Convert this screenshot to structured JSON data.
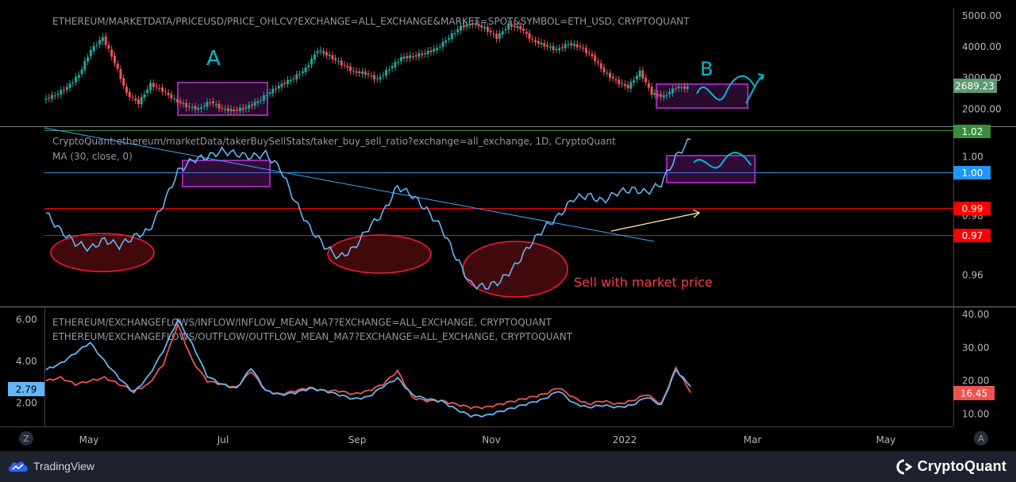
{
  "chart_data": [
    {
      "type": "line",
      "title": "ETHEREUM/MARKETDATA/PRICEUSD/PRICE_OHLCV?EXCHANGE=ALL_EXCHANGE&MARKET=SPOT&SYMBOL=ETH_USD, CRYPTOQUANT",
      "series": [
        {
          "name": "",
          "values": [
            2300,
            2450,
            2700,
            3100,
            3900,
            4300,
            3500,
            2500,
            2200,
            2800,
            2600,
            2300,
            2100,
            2000,
            2250,
            2000,
            1950,
            2050,
            2250,
            2550,
            2800,
            3000,
            3300,
            3900,
            3700,
            3450,
            3200,
            3150,
            2950,
            3300,
            3650,
            3700,
            3800,
            3950,
            4300,
            4650,
            4750,
            4600,
            4300,
            4700,
            4600,
            4200,
            4050,
            3900,
            4100,
            4000,
            3700,
            3200,
            2900,
            2700,
            3200,
            2500,
            2400,
            2700,
            2689
          ]
        }
      ],
      "y_ticks": [
        "5000.00",
        "4000.00",
        "3000.00",
        "2000.00"
      ],
      "ylim": [
        1500,
        5200
      ],
      "current_value": "2689.23",
      "annotations": [
        "A",
        "B"
      ]
    },
    {
      "type": "line",
      "title": "CryptoQuant:ethereum/marketData/takerBuySellStats/taker_buy_sell_ratio?exchange=all_exchange, 1D, CryptoQuant",
      "subtitle": "MA (30, close, 0)",
      "series": [
        {
          "name": "",
          "values": [
            0.981,
            0.975,
            0.971,
            0.969,
            0.972,
            0.97,
            0.973,
            0.975,
            0.984,
            0.995,
            0.999,
            1.0,
            1.002,
            1.001,
            1.0,
            1.001,
            0.996,
            0.985,
            0.976,
            0.97,
            0.966,
            0.969,
            0.976,
            0.981,
            0.99,
            0.987,
            0.982,
            0.976,
            0.966,
            0.957,
            0.956,
            0.958,
            0.963,
            0.97,
            0.976,
            0.98,
            0.986,
            0.987,
            0.985,
            0.988,
            0.989,
            0.988,
            0.991,
            1.0,
            1.006
          ]
        }
      ],
      "y_ticks": [
        "1.00",
        "0.98",
        "0.96"
      ],
      "ylim": [
        0.95,
        1.009
      ],
      "levels": [
        "1.02",
        "1.00",
        "0.99",
        "0.97"
      ],
      "annotation": "Sell with market price"
    },
    {
      "type": "line",
      "series_labels": [
        "ETHEREUM/EXCHANGEFLOWS/INFLOW/INFLOW_MEAN_MA7?EXCHANGE=ALL_EXCHANGE, CRYPTOQUANT",
        "ETHEREUM/EXCHANGEFLOWS/OUTFLOW/OUTFLOW_MEAN_MA7?EXCHANGE=ALL_EXCHANGE, CRYPTOQUANT"
      ],
      "series": [
        {
          "name": "",
          "axis": "left",
          "values": [
            3.6,
            3.9,
            4.4,
            4.9,
            4.0,
            3.2,
            2.5,
            3.3,
            4.5,
            6.0,
            4.8,
            3.3,
            2.9,
            2.7,
            3.7,
            2.6,
            2.4,
            2.5,
            2.7,
            2.6,
            2.4,
            2.2,
            2.3,
            2.8,
            3.2,
            2.4,
            2.2,
            2.1,
            1.7,
            1.4,
            1.4,
            1.6,
            1.8,
            2.0,
            2.2,
            2.6,
            2.0,
            1.8,
            1.9,
            1.8,
            1.9,
            2.3,
            1.9,
            3.6,
            2.79
          ]
        },
        {
          "name": "",
          "axis": "right",
          "values": [
            20,
            21,
            19,
            20,
            21,
            19,
            17,
            19,
            25,
            37,
            26,
            20,
            19,
            18,
            23,
            17,
            16,
            17,
            18,
            17,
            17,
            16,
            17,
            19,
            23,
            15,
            14,
            14,
            13,
            12,
            12,
            13,
            14,
            15,
            16,
            18,
            15,
            13,
            14,
            13,
            14,
            16,
            13,
            24,
            16.45
          ]
        }
      ],
      "y_ticks_left": [
        "6.00",
        "4.00",
        "2.00"
      ],
      "y_ticks_right": [
        "40.00",
        "30.00",
        "20.00",
        "10.00"
      ],
      "ylim_left": [
        1.0,
        6.4
      ],
      "ylim_right": [
        7,
        41
      ],
      "current_left": "2.79",
      "current_right": "16.45"
    }
  ],
  "x_ticks": [
    "May",
    "Jul",
    "Sep",
    "Nov",
    "2022",
    "Mar",
    "May"
  ],
  "corner_left": "Z",
  "corner_right": "A",
  "footer": {
    "tradingview": "TradingView",
    "cryptoquant": "CryptoQuant"
  },
  "colors": {
    "price_up": "#26a69a",
    "price_down": "#ef5350",
    "ratio": "#64b5f6",
    "inflow": "#64b5f6",
    "outflow": "#ef5350",
    "box": "#9c27b0",
    "level_red": "#ff0000",
    "level_blue": "#2196f3",
    "level_green": "#388e3c"
  }
}
